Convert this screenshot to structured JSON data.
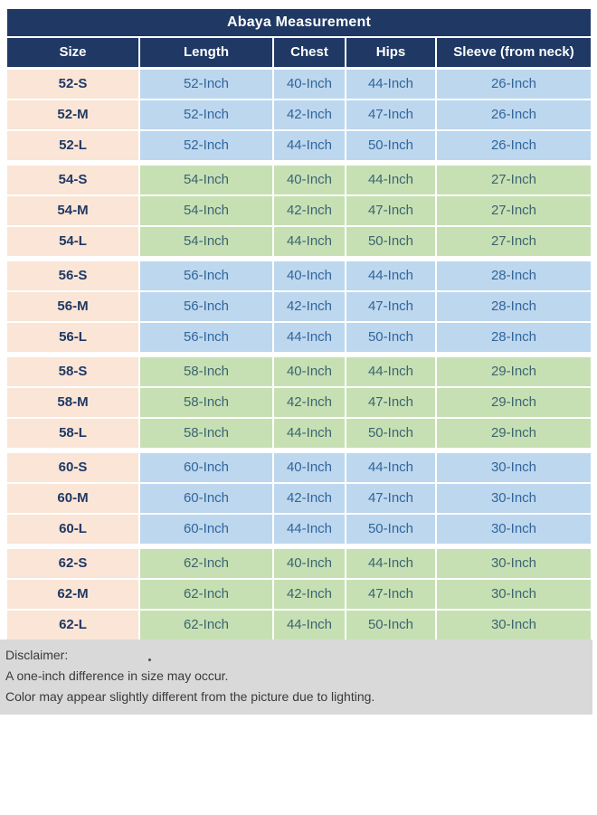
{
  "title": "Abaya Measurement",
  "columns": [
    "Size",
    "Length",
    "Chest",
    "Hips",
    "Sleeve (from neck)"
  ],
  "groups": [
    {
      "size_base": "52",
      "tint": "blue",
      "rows": [
        {
          "size": "52-S",
          "length": "52-Inch",
          "chest": "40-Inch",
          "hips": "44-Inch",
          "sleeve": "26-Inch"
        },
        {
          "size": "52-M",
          "length": "52-Inch",
          "chest": "42-Inch",
          "hips": "47-Inch",
          "sleeve": "26-Inch"
        },
        {
          "size": "52-L",
          "length": "52-Inch",
          "chest": "44-Inch",
          "hips": "50-Inch",
          "sleeve": "26-Inch"
        }
      ]
    },
    {
      "size_base": "54",
      "tint": "green",
      "rows": [
        {
          "size": "54-S",
          "length": "54-Inch",
          "chest": "40-Inch",
          "hips": "44-Inch",
          "sleeve": "27-Inch"
        },
        {
          "size": "54-M",
          "length": "54-Inch",
          "chest": "42-Inch",
          "hips": "47-Inch",
          "sleeve": "27-Inch"
        },
        {
          "size": "54-L",
          "length": "54-Inch",
          "chest": "44-Inch",
          "hips": "50-Inch",
          "sleeve": "27-Inch"
        }
      ]
    },
    {
      "size_base": "56",
      "tint": "blue",
      "rows": [
        {
          "size": "56-S",
          "length": "56-Inch",
          "chest": "40-Inch",
          "hips": "44-Inch",
          "sleeve": "28-Inch"
        },
        {
          "size": "56-M",
          "length": "56-Inch",
          "chest": "42-Inch",
          "hips": "47-Inch",
          "sleeve": "28-Inch"
        },
        {
          "size": "56-L",
          "length": "56-Inch",
          "chest": "44-Inch",
          "hips": "50-Inch",
          "sleeve": "28-Inch"
        }
      ]
    },
    {
      "size_base": "58",
      "tint": "green",
      "rows": [
        {
          "size": "58-S",
          "length": "58-Inch",
          "chest": "40-Inch",
          "hips": "44-Inch",
          "sleeve": "29-Inch"
        },
        {
          "size": "58-M",
          "length": "58-Inch",
          "chest": "42-Inch",
          "hips": "47-Inch",
          "sleeve": "29-Inch"
        },
        {
          "size": "58-L",
          "length": "58-Inch",
          "chest": "44-Inch",
          "hips": "50-Inch",
          "sleeve": "29-Inch"
        }
      ]
    },
    {
      "size_base": "60",
      "tint": "blue",
      "rows": [
        {
          "size": "60-S",
          "length": "60-Inch",
          "chest": "40-Inch",
          "hips": "44-Inch",
          "sleeve": "30-Inch"
        },
        {
          "size": "60-M",
          "length": "60-Inch",
          "chest": "42-Inch",
          "hips": "47-Inch",
          "sleeve": "30-Inch"
        },
        {
          "size": "60-L",
          "length": "60-Inch",
          "chest": "44-Inch",
          "hips": "50-Inch",
          "sleeve": "30-Inch"
        }
      ]
    },
    {
      "size_base": "62",
      "tint": "green",
      "rows": [
        {
          "size": "62-S",
          "length": "62-Inch",
          "chest": "40-Inch",
          "hips": "44-Inch",
          "sleeve": "30-Inch"
        },
        {
          "size": "62-M",
          "length": "62-Inch",
          "chest": "42-Inch",
          "hips": "47-Inch",
          "sleeve": "30-Inch"
        },
        {
          "size": "62-L",
          "length": "62-Inch",
          "chest": "44-Inch",
          "hips": "50-Inch",
          "sleeve": "30-Inch"
        }
      ]
    }
  ],
  "disclaimer": {
    "heading": "Disclaimer:",
    "lines": [
      "A one-inch difference in size may occur.",
      "Color may appear slightly different from the picture due to lighting."
    ]
  },
  "colors": {
    "header_navy": "#1f3864",
    "size_column_peach": "#fbe5d6",
    "row_tint_blue": "#bdd7ee",
    "row_tint_green": "#c6e0b4",
    "disclaimer_gray": "#d9d9d9",
    "data_text_blue": "#31659c"
  }
}
